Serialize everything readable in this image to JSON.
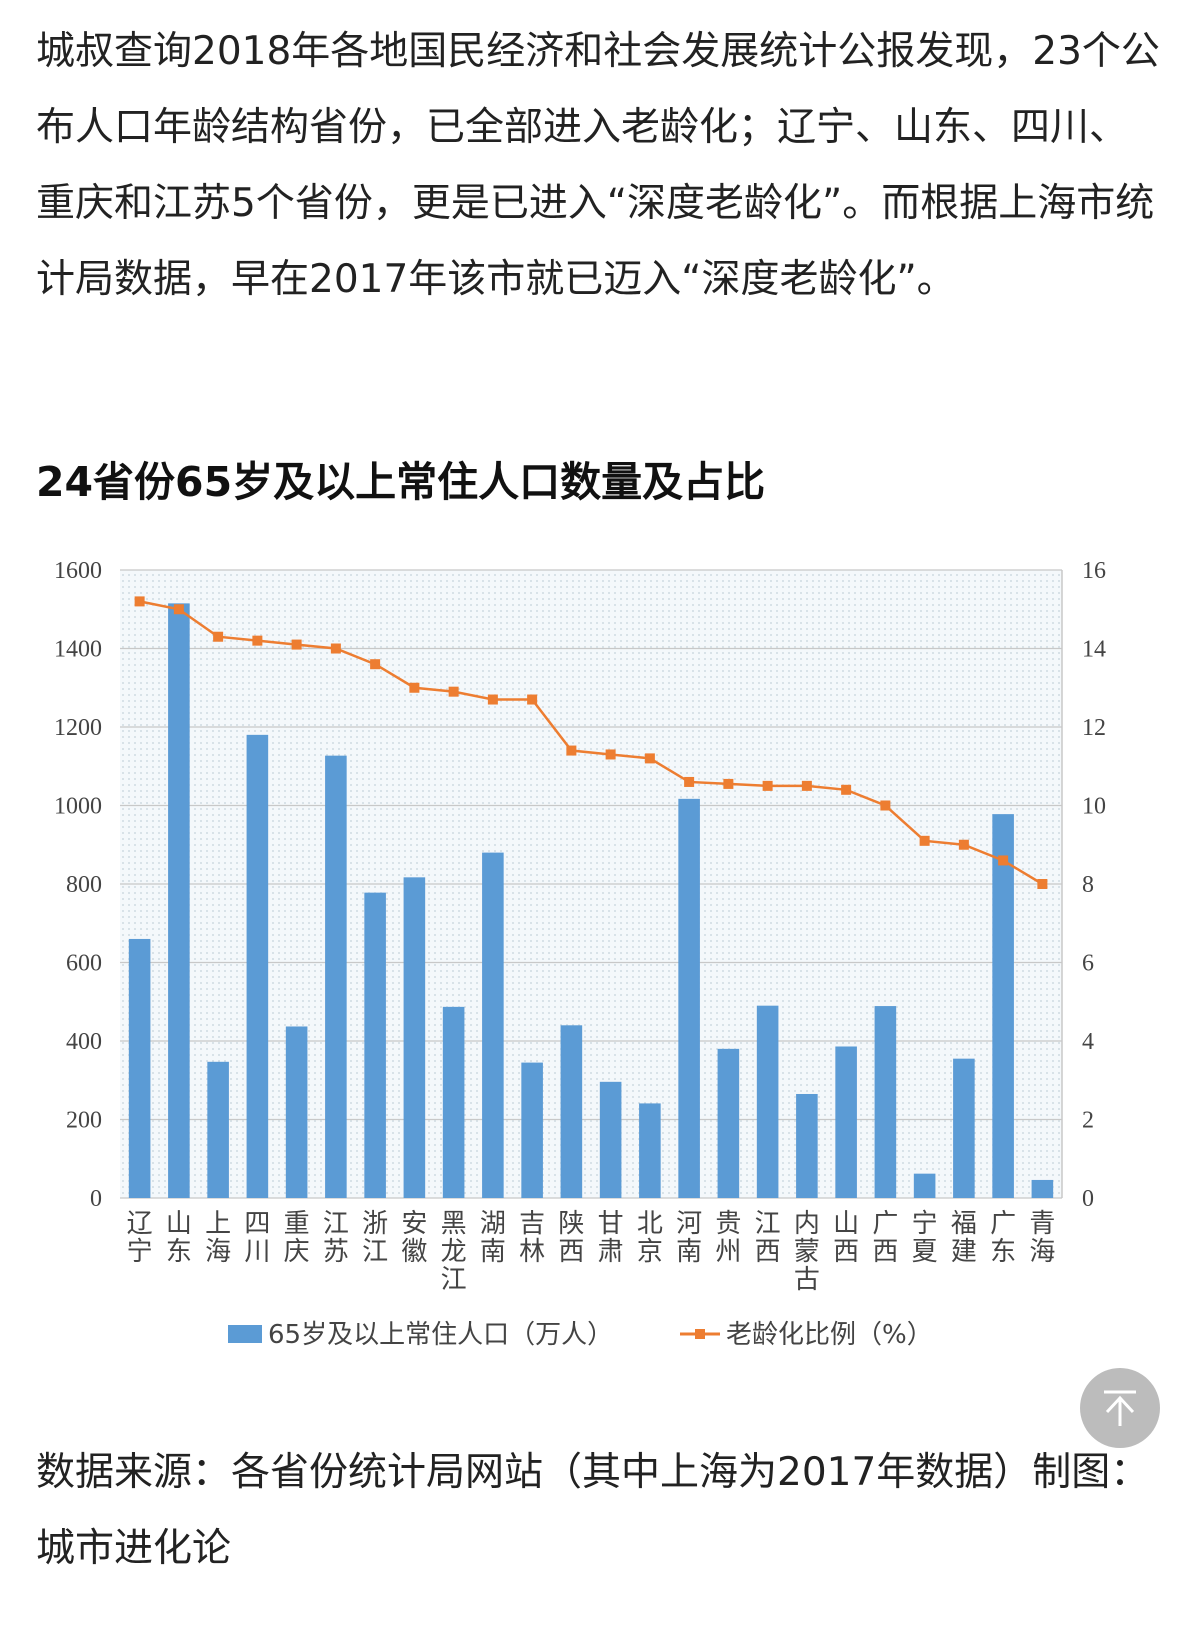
{
  "article": {
    "paragraph": "城叔查询2018年各地国民经济和社会发展统计公报发现，23个公布人口年龄结构省份，已全部进入老龄化；辽宁、山东、四川、重庆和江苏5个省份，更是已进入“深度老龄化”。而根据上海市统计局数据，早在2017年该市就已迈入“深度老龄化”。",
    "heading": "24省份65岁及以上常住人口数量及占比",
    "source": "数据来源：各省份统计局网站（其中上海为2017年数据）制图：城市进化论"
  },
  "back_to_top_icon": "arrow-up-icon",
  "chart_data": {
    "type": "bar",
    "title": "",
    "categories": [
      "辽宁",
      "山东",
      "上海",
      "四川",
      "重庆",
      "江苏",
      "浙江",
      "安徽",
      "黑龙江",
      "湖南",
      "吉林",
      "陕西",
      "甘肃",
      "北京",
      "河南",
      "贵州",
      "江西",
      "内蒙古",
      "山西",
      "广西",
      "宁夏",
      "福建",
      "广东",
      "青海"
    ],
    "series": [
      {
        "name": "65岁及以上常住人口（万人）",
        "type": "bar",
        "axis": "left",
        "color": "#5b9bd5",
        "values": [
          660,
          1515,
          347,
          1180,
          437,
          1127,
          778,
          817,
          487,
          880,
          345,
          440,
          296,
          241,
          1017,
          380,
          490,
          265,
          386,
          489,
          62,
          355,
          978,
          46
        ]
      },
      {
        "name": "老龄化比例（%）",
        "type": "line",
        "axis": "right",
        "color": "#ed7d31",
        "values": [
          15.2,
          15.0,
          14.3,
          14.2,
          14.1,
          14.0,
          13.6,
          13.0,
          12.9,
          12.7,
          12.7,
          11.4,
          11.3,
          11.2,
          10.6,
          10.55,
          10.5,
          10.5,
          10.4,
          10.0,
          9.1,
          9.0,
          8.6,
          8.0
        ]
      }
    ],
    "y_left": {
      "min": 0,
      "max": 1600,
      "ticks": [
        "0",
        "200",
        "400",
        "600",
        "800",
        "1000",
        "1200",
        "1400",
        "1600"
      ]
    },
    "y_right": {
      "min": 0,
      "max": 16,
      "ticks": [
        "0",
        "2",
        "4",
        "6",
        "8",
        "10",
        "12",
        "14",
        "16"
      ]
    },
    "grid": true,
    "legend_position": "bottom",
    "gridline_color": "#c8c8c8",
    "axis_text_color": "#444444"
  }
}
